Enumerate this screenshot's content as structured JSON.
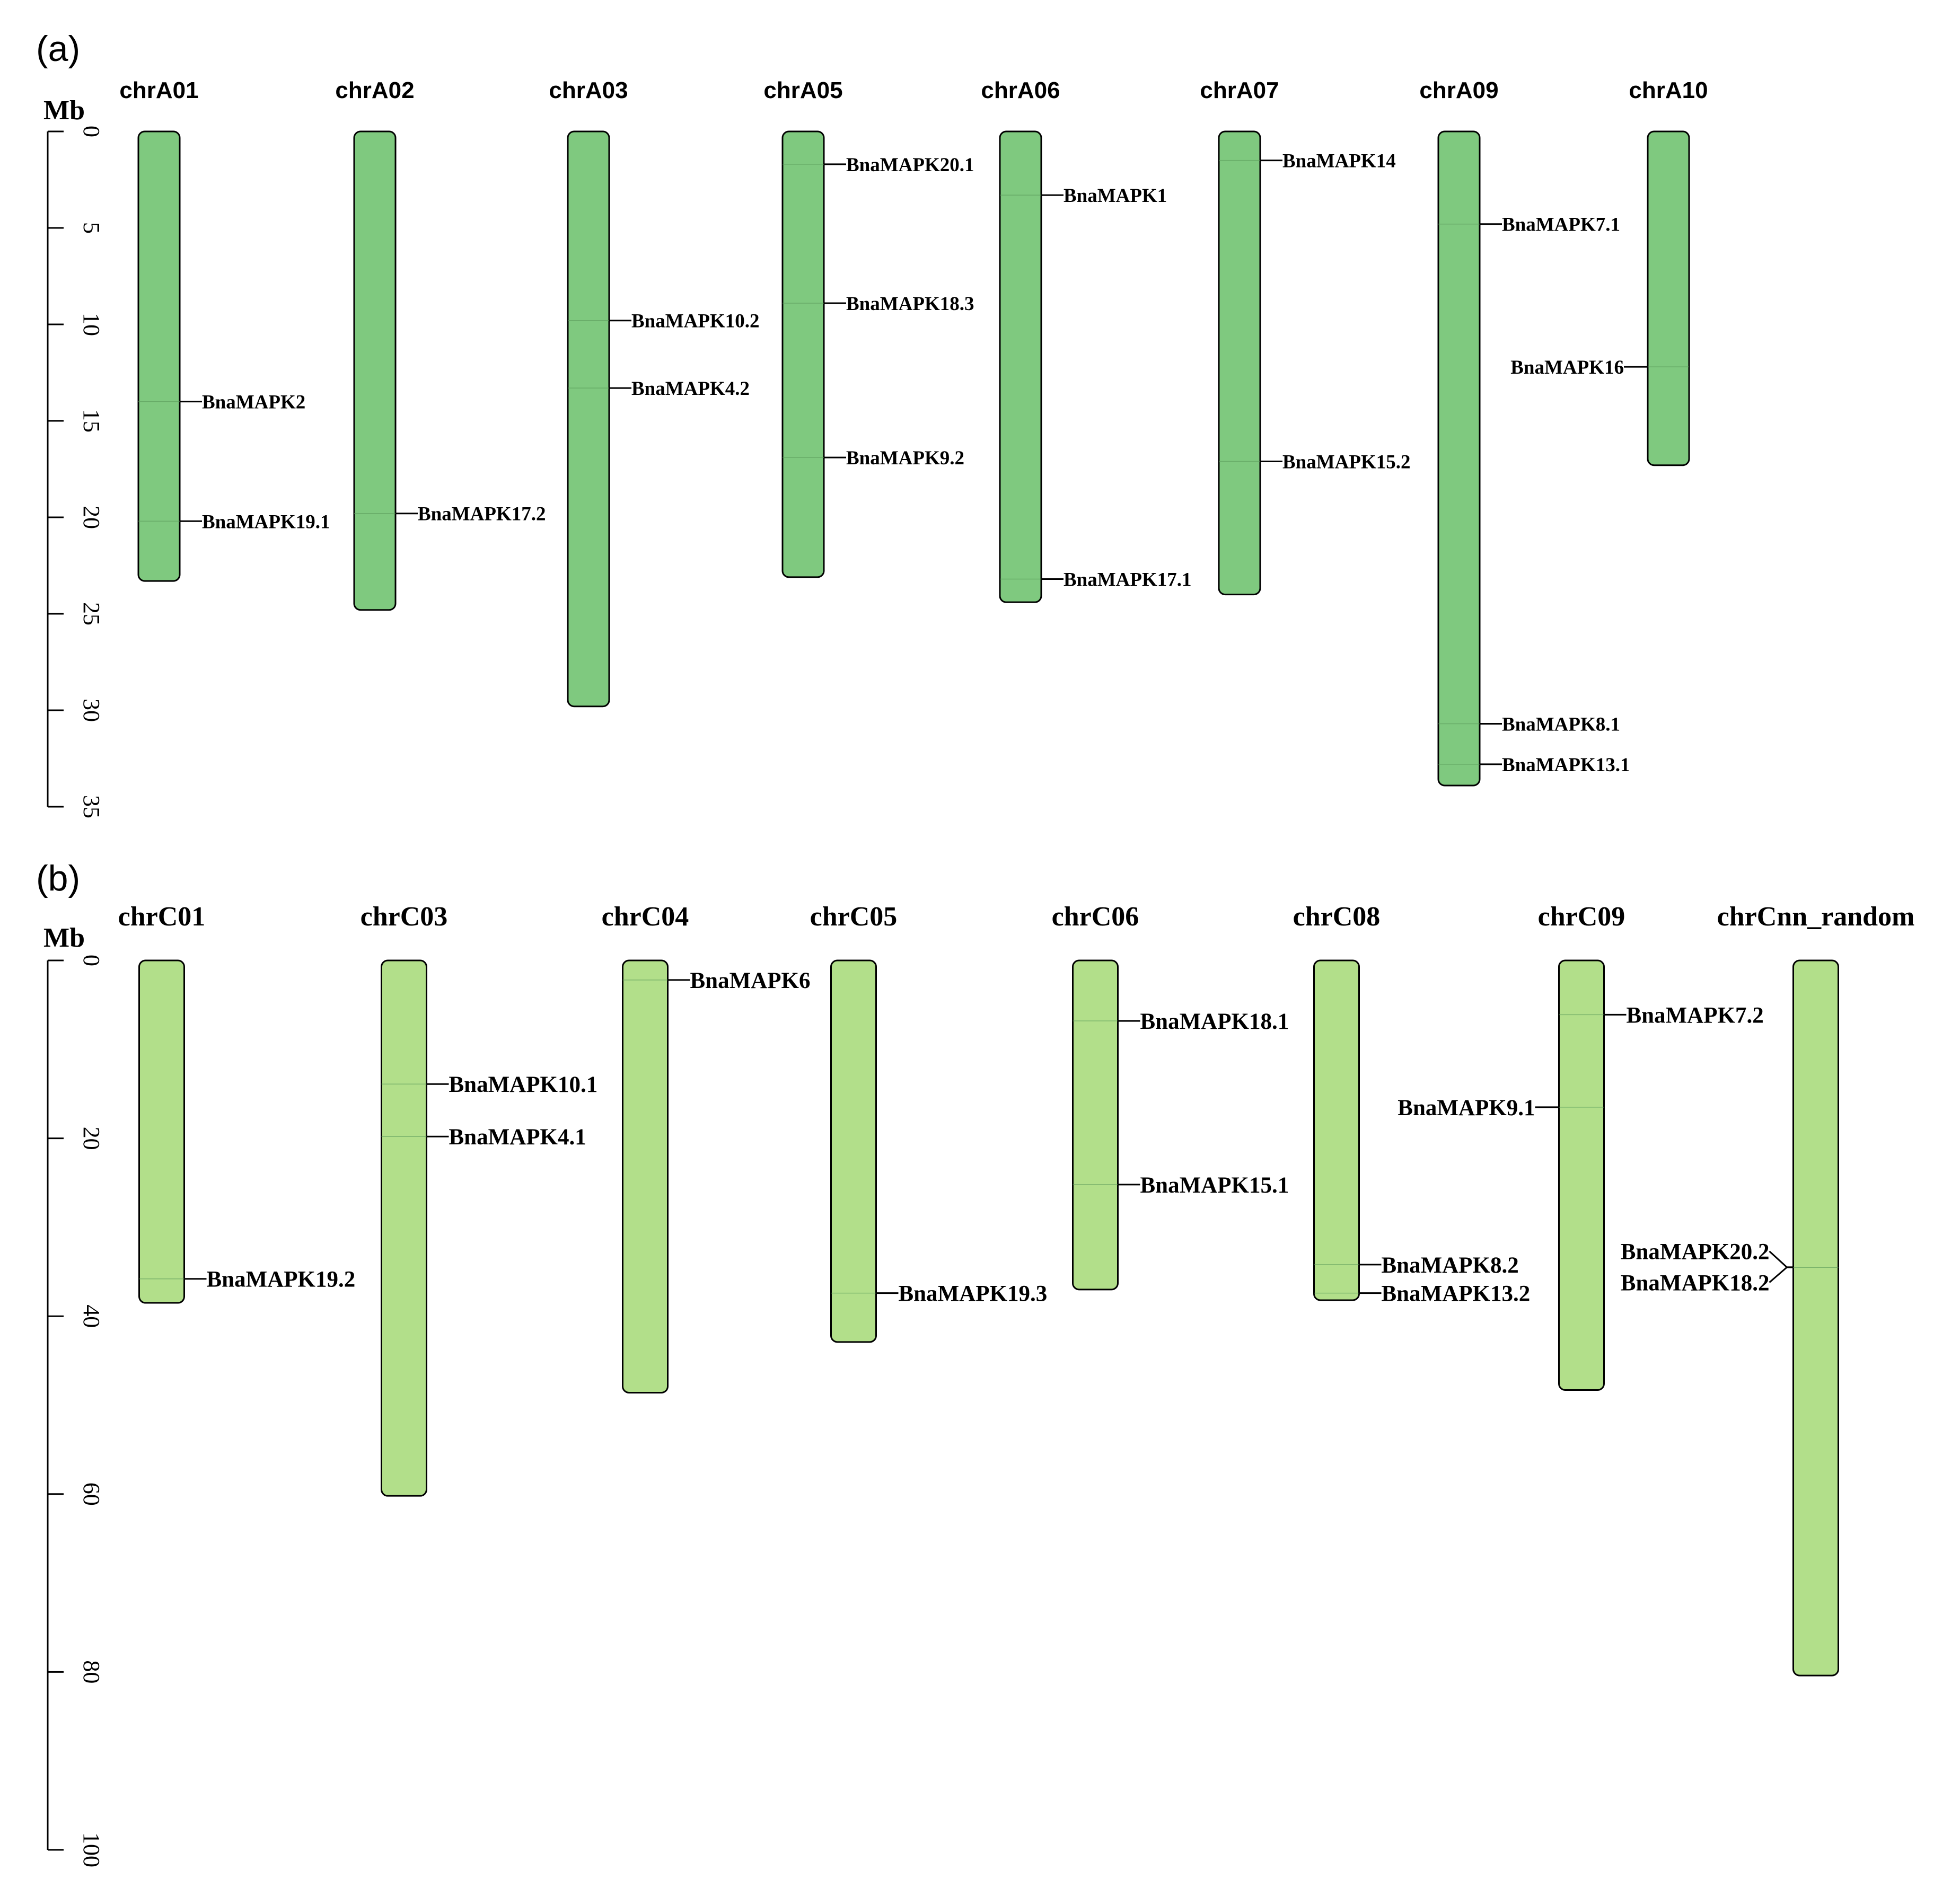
{
  "chart_data": [
    {
      "type": "diagram",
      "panel_label": "(a)",
      "axis_unit": "Mb",
      "axis_ticks": [
        "0",
        "5",
        "10",
        "15",
        "20",
        "25",
        "30",
        "35"
      ],
      "axis_range": [
        0,
        35
      ],
      "bar_color": "#7fc97f",
      "chromosomes": [
        {
          "name": "chrA01",
          "length": 23.3,
          "genes": [
            {
              "label": "BnaMAPK2",
              "pos": 14.0
            },
            {
              "label": "BnaMAPK19.1",
              "pos": 20.2
            }
          ]
        },
        {
          "name": "chrA02",
          "length": 24.8,
          "genes": [
            {
              "label": "BnaMAPK17.2",
              "pos": 19.8
            }
          ]
        },
        {
          "name": "chrA03",
          "length": 29.8,
          "genes": [
            {
              "label": "BnaMAPK10.2",
              "pos": 9.8
            },
            {
              "label": "BnaMAPK4.2",
              "pos": 13.3
            }
          ]
        },
        {
          "name": "chrA05",
          "length": 23.1,
          "genes": [
            {
              "label": "BnaMAPK20.1",
              "pos": 1.7
            },
            {
              "label": "BnaMAPK18.3",
              "pos": 8.9
            },
            {
              "label": "BnaMAPK9.2",
              "pos": 16.9
            }
          ]
        },
        {
          "name": "chrA06",
          "length": 24.4,
          "genes": [
            {
              "label": "BnaMAPK1",
              "pos": 3.3
            },
            {
              "label": "BnaMAPK17.1",
              "pos": 23.2
            }
          ]
        },
        {
          "name": "chrA07",
          "length": 24.0,
          "genes": [
            {
              "label": "BnaMAPK14",
              "pos": 1.5
            },
            {
              "label": "BnaMAPK15.2",
              "pos": 17.1
            }
          ]
        },
        {
          "name": "chrA09",
          "length": 33.9,
          "genes": [
            {
              "label": "BnaMAPK7.1",
              "pos": 4.8
            },
            {
              "label": "BnaMAPK8.1",
              "pos": 30.7
            },
            {
              "label": "BnaMAPK13.1",
              "pos": 32.8
            }
          ]
        },
        {
          "name": "chrA10",
          "length": 17.3,
          "genes": [
            {
              "label": "BnaMAPK16",
              "pos": 12.2,
              "side": "left"
            }
          ]
        }
      ]
    },
    {
      "type": "diagram",
      "panel_label": "(b)",
      "axis_unit": "Mb",
      "axis_ticks": [
        "0",
        "20",
        "40",
        "60",
        "80",
        "100"
      ],
      "axis_range": [
        0,
        100
      ],
      "bar_color": "#b2df8a",
      "chromosomes": [
        {
          "name": "chrC01",
          "length": 38.5,
          "genes": [
            {
              "label": "BnaMAPK19.2",
              "pos": 35.8
            }
          ]
        },
        {
          "name": "chrC03",
          "length": 60.2,
          "genes": [
            {
              "label": "BnaMAPK10.1",
              "pos": 13.9
            },
            {
              "label": "BnaMAPK4.1",
              "pos": 19.8
            }
          ]
        },
        {
          "name": "chrC04",
          "length": 48.6,
          "genes": [
            {
              "label": "BnaMAPK6",
              "pos": 2.2
            }
          ]
        },
        {
          "name": "chrC05",
          "length": 42.9,
          "genes": [
            {
              "label": "BnaMAPK19.3",
              "pos": 37.4
            }
          ]
        },
        {
          "name": "chrC06",
          "length": 37.0,
          "genes": [
            {
              "label": "BnaMAPK18.1",
              "pos": 6.8
            },
            {
              "label": "BnaMAPK15.1",
              "pos": 25.2
            }
          ]
        },
        {
          "name": "chrC08",
          "length": 38.2,
          "genes": [
            {
              "label": "BnaMAPK8.2",
              "pos": 34.2
            },
            {
              "label": "BnaMAPK13.2",
              "pos": 37.4
            }
          ]
        },
        {
          "name": "chrC09",
          "length": 48.3,
          "genes": [
            {
              "label": "BnaMAPK7.2",
              "pos": 6.1
            },
            {
              "label": "BnaMAPK9.1",
              "pos": 16.5,
              "side": "left"
            }
          ]
        },
        {
          "name": "chrCnn_random",
          "length": 80.4,
          "genes": [
            {
              "label": "BnaMAPK20.2",
              "pos": 34.5,
              "side": "left",
              "label_pos": 32.7
            },
            {
              "label": "BnaMAPK18.2",
              "pos": 34.5,
              "side": "left",
              "label_pos": 36.2
            }
          ]
        }
      ]
    }
  ]
}
